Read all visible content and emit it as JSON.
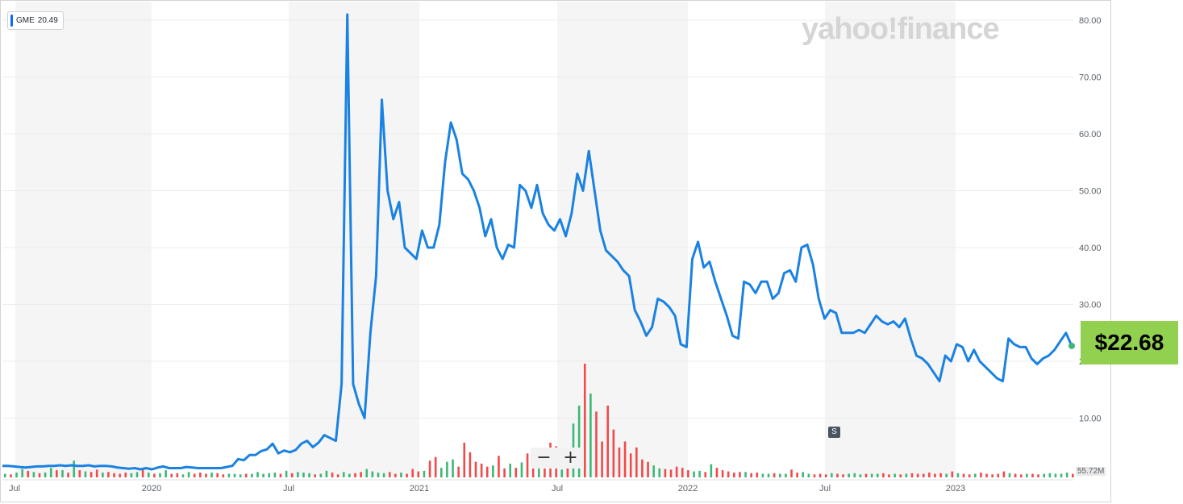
{
  "badge": {
    "ticker": "GME",
    "value": "20.49"
  },
  "logo": "yahoo!finance",
  "zoom": {
    "minus": "−",
    "plus": "+"
  },
  "split_marker": "S",
  "volume_label": "55.72M",
  "price_callout": "$22.68",
  "colors": {
    "line": "#1a82e2",
    "vol_up": "#3cb878",
    "vol_down": "#f04a4a",
    "shade": "#f5f5f5",
    "callout": "#92d050"
  },
  "chart_data": {
    "type": "line",
    "x_tick_labels": [
      "Jul",
      "2020",
      "Jul",
      "2021",
      "Jul",
      "2022",
      "Jul",
      "2023"
    ],
    "y_tick_labels": [
      "10.00",
      "20.00",
      "30.00",
      "40.00",
      "50.00",
      "60.00",
      "70.00",
      "80.00"
    ],
    "ylim": [
      0,
      82
    ],
    "grid": true,
    "series": [
      {
        "values": [
          1.6,
          1.6,
          1.5,
          1.4,
          1.3,
          1.4,
          1.5,
          1.5,
          1.6,
          1.6,
          1.7,
          1.6,
          1.7,
          1.6,
          1.6,
          1.7,
          1.5,
          1.6,
          1.6,
          1.5,
          1.3,
          1.2,
          1.1,
          1.2,
          1.0,
          1.2,
          1.0,
          1.3,
          1.5,
          1.2,
          1.2,
          1.2,
          1.4,
          1.3,
          1.2,
          1.2,
          1.2,
          1.2,
          1.2,
          1.4,
          1.6,
          2.8,
          2.6,
          3.5,
          3.5,
          4.2,
          4.5,
          5.5,
          3.8,
          4.3,
          4.0,
          4.4,
          5.5,
          6.0,
          4.9,
          5.7,
          7.0,
          6.5,
          6.0,
          16.0,
          81.0,
          16.0,
          12.5,
          10.0,
          25.0,
          35.0,
          66.0,
          50.0,
          45.0,
          48.0,
          40.0,
          39.0,
          38.0,
          43.0,
          40.0,
          40.0,
          44.0,
          55.0,
          62.0,
          59.0,
          53.0,
          52.0,
          50.0,
          47.0,
          42.0,
          45.0,
          40.0,
          38.0,
          40.5,
          40.0,
          51.0,
          50.0,
          47.0,
          51.0,
          46.0,
          44.0,
          43.0,
          45.0,
          42.0,
          46.0,
          53.0,
          50.0,
          57.0,
          50.0,
          43.0,
          39.5,
          38.5,
          37.5,
          36.0,
          35.0,
          29.0,
          27.0,
          24.5,
          26.0,
          31.0,
          30.5,
          29.5,
          28.0,
          23.0,
          22.5,
          38.0,
          41.0,
          36.5,
          37.5,
          34.0,
          31.0,
          28.0,
          24.5,
          24.0,
          34.0,
          33.5,
          32.0,
          34.0,
          34.0,
          31.0,
          32.0,
          35.5,
          36.0,
          34.0,
          40.0,
          40.5,
          37.0,
          31.0,
          27.5,
          29.0,
          28.5,
          25.0,
          25.0,
          25.0,
          25.5,
          25.0,
          26.5,
          28.0,
          27.0,
          26.5,
          27.0,
          26.0,
          27.5,
          24.0,
          21.0,
          20.5,
          19.5,
          18.0,
          16.5,
          21.0,
          20.0,
          23.0,
          22.5,
          20.0,
          22.0,
          20.0,
          19.0,
          18.0,
          17.0,
          16.5,
          24.0,
          23.0,
          22.5,
          22.5,
          20.5,
          19.5,
          20.5,
          21.0,
          22.0,
          23.5,
          25.0,
          22.7
        ]
      }
    ],
    "volume": {
      "values": [
        0.6,
        0.5,
        0.8,
        1.4,
        1.1,
        0.9,
        0.7,
        0.8,
        1.6,
        1.2,
        1.2,
        0.8,
        2.8,
        1.2,
        1.0,
        0.9,
        1.3,
        0.8,
        0.9,
        0.7,
        0.6,
        0.8,
        0.7,
        0.9,
        1.4,
        0.8,
        0.6,
        0.7,
        1.2,
        0.6,
        0.7,
        0.5,
        0.9,
        0.6,
        0.8,
        0.6,
        0.8,
        0.7,
        0.5,
        0.6,
        0.6,
        0.5,
        0.6,
        0.6,
        0.9,
        0.6,
        0.7,
        0.8,
        0.6,
        1.1,
        0.7,
        0.9,
        0.8,
        0.7,
        0.5,
        0.6,
        1.1,
        0.8,
        0.5,
        0.9,
        0.6,
        0.7,
        0.9,
        1.4,
        1.0,
        0.8,
        0.7,
        0.9,
        0.6,
        0.8,
        0.6,
        1.4,
        1.0,
        1.1,
        2.8,
        3.4,
        1.6,
        2.6,
        3.0,
        1.8,
        5.8,
        4.2,
        2.6,
        2.3,
        1.8,
        2.0,
        3.6,
        1.5,
        2.3,
        1.6,
        2.5,
        4.0,
        2.6,
        2.4,
        2.0,
        5.8,
        5.2,
        1.3,
        1.6,
        9.0,
        12.0,
        19.0,
        14.0,
        11.0,
        6.0,
        12.0,
        8.0,
        5.0,
        6.0,
        4.0,
        5.0,
        3.0,
        2.6,
        2.0,
        1.5,
        1.4,
        1.3,
        1.8,
        1.6,
        1.2,
        1.0,
        1.1,
        0.9,
        2.2,
        1.6,
        1.2,
        1.0,
        0.8,
        0.9,
        0.9,
        0.7,
        0.8,
        0.6,
        0.6,
        0.7,
        0.6,
        0.6,
        1.3,
        0.8,
        0.9,
        0.6,
        0.5,
        0.6,
        0.5,
        0.7,
        0.6,
        0.5,
        0.6,
        0.7,
        0.5,
        0.6,
        0.6,
        0.6,
        0.7,
        0.5,
        0.6,
        0.5,
        0.6,
        0.7,
        0.6,
        0.6,
        0.8,
        0.6,
        0.7,
        0.6,
        1.0,
        0.7,
        0.6,
        0.5,
        0.6,
        0.8,
        0.6,
        0.5,
        0.6,
        1.0,
        0.7,
        0.6,
        0.5,
        0.6,
        0.6,
        0.5,
        0.6,
        0.7,
        0.6,
        0.6,
        0.8,
        0.6
      ],
      "up": [
        1,
        0,
        1,
        1,
        0,
        1,
        0,
        1,
        1,
        0,
        1,
        0,
        1,
        0,
        1,
        0,
        0,
        1,
        0,
        0,
        0,
        0,
        1,
        1,
        0,
        1,
        0,
        1,
        1,
        0,
        0,
        1,
        1,
        0,
        0,
        0,
        1,
        0,
        0,
        1,
        1,
        1,
        0,
        1,
        1,
        1,
        1,
        1,
        0,
        1,
        0,
        1,
        1,
        1,
        0,
        1,
        1,
        0,
        0,
        1,
        1,
        0,
        0,
        1,
        1,
        1,
        1,
        0,
        0,
        1,
        0,
        0,
        0,
        1,
        0,
        0,
        1,
        1,
        1,
        0,
        0,
        0,
        0,
        0,
        0,
        1,
        0,
        0,
        1,
        0,
        1,
        0,
        0,
        1,
        0,
        0,
        0,
        1,
        0,
        1,
        1,
        0,
        1,
        0,
        0,
        0,
        0,
        0,
        0,
        0,
        0,
        0,
        0,
        1,
        1,
        0,
        0,
        0,
        0,
        0,
        1,
        1,
        0,
        1,
        0,
        0,
        0,
        0,
        0,
        1,
        0,
        0,
        1,
        1,
        0,
        1,
        1,
        0,
        0,
        1,
        1,
        0,
        0,
        0,
        1,
        0,
        0,
        1,
        1,
        1,
        0,
        1,
        1,
        0,
        0,
        1,
        0,
        1,
        0,
        0,
        0,
        0,
        0,
        0,
        1,
        0,
        1,
        0,
        0,
        1,
        0,
        0,
        0,
        0,
        0,
        1,
        0,
        0,
        1,
        0,
        0,
        1,
        1,
        1,
        1,
        1,
        0
      ],
      "max": 19
    }
  }
}
